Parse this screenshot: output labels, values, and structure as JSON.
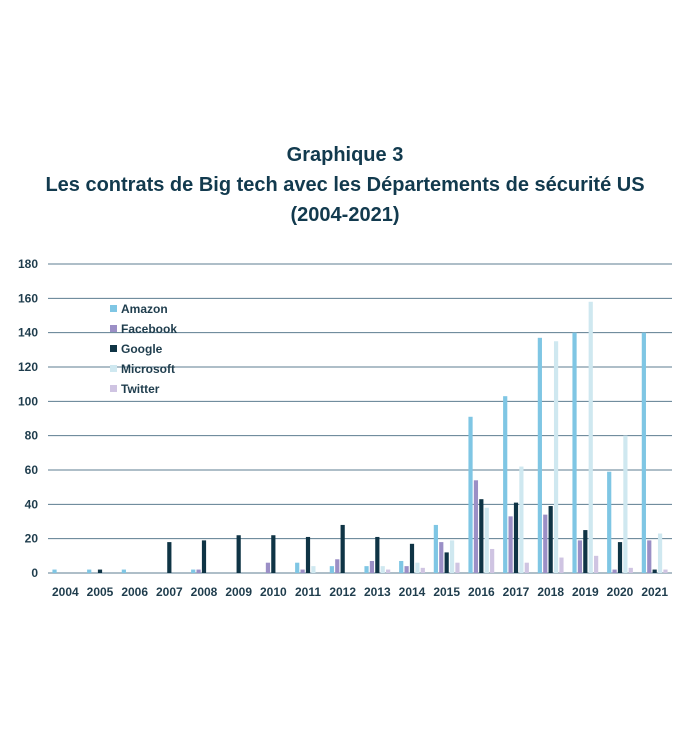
{
  "chart_data": {
    "type": "bar",
    "title": "Graphique 3",
    "subtitle": "Les contrats de Big tech avec les Départements de sécurité US",
    "subtitle2": "(2004-2021)",
    "xlabel": "",
    "ylabel": "",
    "ylim": [
      0,
      180
    ],
    "yticks": [
      0,
      20,
      40,
      60,
      80,
      100,
      120,
      140,
      160,
      180
    ],
    "grid": true,
    "legend_position": "top-left",
    "categories": [
      "2004",
      "2005",
      "2006",
      "2007",
      "2008",
      "2009",
      "2010",
      "2011",
      "2012",
      "2013",
      "2014",
      "2015",
      "2016",
      "2017",
      "2018",
      "2019",
      "2020",
      "2021"
    ],
    "series": [
      {
        "name": "Amazon",
        "color": "#7fc6e4",
        "values": [
          2,
          2,
          2,
          0,
          2,
          0,
          0,
          6,
          4,
          4,
          7,
          28,
          91,
          103,
          137,
          140,
          59,
          140
        ]
      },
      {
        "name": "Facebook",
        "color": "#9b8fc6",
        "values": [
          0,
          0,
          0,
          0,
          2,
          0,
          6,
          2,
          8,
          7,
          4,
          18,
          54,
          33,
          34,
          19,
          2,
          19
        ]
      },
      {
        "name": "Google",
        "color": "#0f3445",
        "values": [
          0,
          2,
          0,
          18,
          19,
          22,
          22,
          21,
          28,
          21,
          17,
          12,
          43,
          41,
          39,
          25,
          18,
          2
        ]
      },
      {
        "name": "Microsoft",
        "color": "#cfe8f0",
        "values": [
          0,
          0,
          0,
          0,
          0,
          0,
          0,
          4,
          0,
          4,
          6,
          19,
          38,
          62,
          135,
          158,
          80,
          23
        ]
      },
      {
        "name": "Twitter",
        "color": "#cfc4e2",
        "values": [
          0,
          0,
          0,
          0,
          0,
          0,
          0,
          0,
          0,
          2,
          3,
          6,
          14,
          6,
          9,
          10,
          3,
          2
        ]
      }
    ]
  }
}
